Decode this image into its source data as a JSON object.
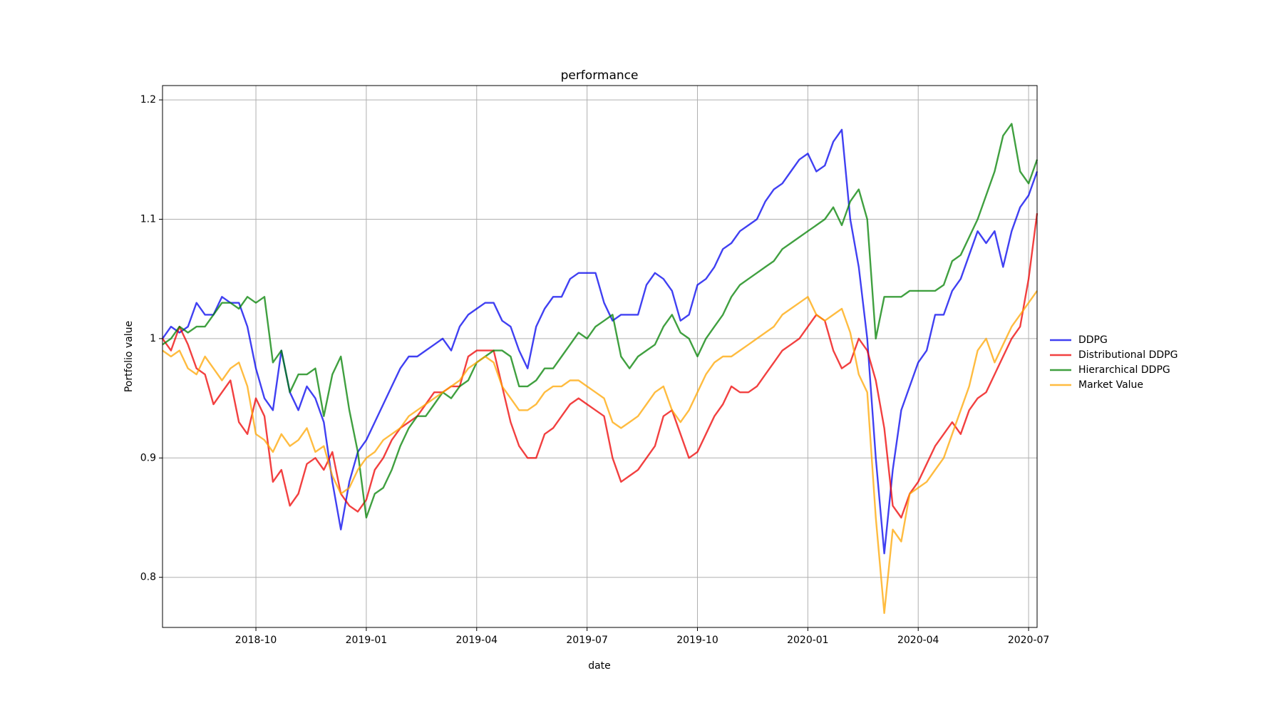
{
  "chart_data": {
    "type": "line",
    "title": "performance",
    "x_label": "date",
    "y_label": "Portfolio value",
    "categories": [
      null,
      null,
      null,
      null,
      null,
      null,
      null,
      null,
      null,
      null,
      null,
      "2018-10",
      null,
      null,
      null,
      null,
      null,
      null,
      null,
      null,
      null,
      null,
      null,
      null,
      "2019-01",
      null,
      null,
      null,
      null,
      null,
      null,
      null,
      null,
      null,
      null,
      null,
      null,
      "2019-04",
      null,
      null,
      null,
      null,
      null,
      null,
      null,
      null,
      null,
      null,
      null,
      null,
      "2019-07",
      null,
      null,
      null,
      null,
      null,
      null,
      null,
      null,
      null,
      null,
      null,
      null,
      "2019-10",
      null,
      null,
      null,
      null,
      null,
      null,
      null,
      null,
      null,
      null,
      null,
      null,
      "2020-01",
      null,
      null,
      null,
      null,
      null,
      null,
      null,
      null,
      null,
      null,
      null,
      null,
      "2020-04",
      null,
      null,
      null,
      null,
      null,
      null,
      null,
      null,
      null,
      null,
      null,
      null,
      "2020-07",
      null
    ],
    "series": [
      {
        "name": "DDPG",
        "color": "#0000ee",
        "values": [
          1.0,
          1.01,
          1.005,
          1.01,
          1.03,
          1.02,
          1.02,
          1.035,
          1.03,
          1.03,
          1.01,
          0.975,
          0.95,
          0.94,
          0.99,
          0.955,
          0.94,
          0.96,
          0.95,
          0.93,
          0.88,
          0.84,
          0.88,
          0.905,
          0.915,
          0.93,
          0.945,
          0.96,
          0.975,
          0.985,
          0.985,
          0.99,
          0.995,
          1.0,
          0.99,
          1.01,
          1.02,
          1.025,
          1.03,
          1.03,
          1.015,
          1.01,
          0.99,
          0.975,
          1.01,
          1.025,
          1.035,
          1.035,
          1.05,
          1.055,
          1.055,
          1.055,
          1.03,
          1.015,
          1.02,
          1.02,
          1.02,
          1.045,
          1.055,
          1.05,
          1.04,
          1.015,
          1.02,
          1.045,
          1.05,
          1.06,
          1.075,
          1.08,
          1.09,
          1.095,
          1.1,
          1.115,
          1.125,
          1.13,
          1.14,
          1.15,
          1.155,
          1.14,
          1.145,
          1.165,
          1.175,
          1.1,
          1.06,
          1.0,
          0.9,
          0.82,
          0.89,
          0.94,
          0.96,
          0.98,
          0.99,
          1.02,
          1.02,
          1.04,
          1.05,
          1.07,
          1.09,
          1.08,
          1.09,
          1.06,
          1.09,
          1.11,
          1.12,
          1.14
        ]
      },
      {
        "name": "Distributional DDPG",
        "color": "#ee0000",
        "values": [
          1.0,
          0.99,
          1.01,
          0.995,
          0.975,
          0.97,
          0.945,
          0.955,
          0.965,
          0.93,
          0.92,
          0.95,
          0.935,
          0.88,
          0.89,
          0.86,
          0.87,
          0.895,
          0.9,
          0.89,
          0.905,
          0.87,
          0.86,
          0.855,
          0.865,
          0.89,
          0.9,
          0.915,
          0.925,
          0.93,
          0.935,
          0.945,
          0.955,
          0.955,
          0.96,
          0.96,
          0.985,
          0.99,
          0.99,
          0.99,
          0.96,
          0.93,
          0.91,
          0.9,
          0.9,
          0.92,
          0.925,
          0.935,
          0.945,
          0.95,
          0.945,
          0.94,
          0.935,
          0.9,
          0.88,
          0.885,
          0.89,
          0.9,
          0.91,
          0.935,
          0.94,
          0.92,
          0.9,
          0.905,
          0.92,
          0.935,
          0.945,
          0.96,
          0.955,
          0.955,
          0.96,
          0.97,
          0.98,
          0.99,
          0.995,
          1.0,
          1.01,
          1.02,
          1.015,
          0.99,
          0.975,
          0.98,
          1.0,
          0.99,
          0.965,
          0.925,
          0.86,
          0.85,
          0.87,
          0.88,
          0.895,
          0.91,
          0.92,
          0.93,
          0.92,
          0.94,
          0.95,
          0.955,
          0.97,
          0.985,
          1.0,
          1.01,
          1.05,
          1.105
        ]
      },
      {
        "name": "Hierarchical DDPG",
        "color": "#008000",
        "values": [
          0.995,
          1.0,
          1.01,
          1.005,
          1.01,
          1.01,
          1.02,
          1.03,
          1.03,
          1.025,
          1.035,
          1.03,
          1.035,
          0.98,
          0.99,
          0.955,
          0.97,
          0.97,
          0.975,
          0.935,
          0.97,
          0.985,
          0.94,
          0.905,
          0.85,
          0.87,
          0.875,
          0.89,
          0.91,
          0.925,
          0.935,
          0.935,
          0.945,
          0.955,
          0.95,
          0.96,
          0.965,
          0.98,
          0.985,
          0.99,
          0.99,
          0.985,
          0.96,
          0.96,
          0.965,
          0.975,
          0.975,
          0.985,
          0.995,
          1.005,
          1.0,
          1.01,
          1.015,
          1.02,
          0.985,
          0.975,
          0.985,
          0.99,
          0.995,
          1.01,
          1.02,
          1.005,
          1.0,
          0.985,
          1.0,
          1.01,
          1.02,
          1.035,
          1.045,
          1.05,
          1.055,
          1.06,
          1.065,
          1.075,
          1.08,
          1.085,
          1.09,
          1.095,
          1.1,
          1.11,
          1.095,
          1.115,
          1.125,
          1.1,
          1.0,
          1.035,
          1.035,
          1.035,
          1.04,
          1.04,
          1.04,
          1.04,
          1.045,
          1.065,
          1.07,
          1.085,
          1.1,
          1.12,
          1.14,
          1.17,
          1.18,
          1.14,
          1.13,
          1.15
        ]
      },
      {
        "name": "Market Value",
        "color": "#ffa500",
        "values": [
          0.99,
          0.985,
          0.99,
          0.975,
          0.97,
          0.985,
          0.975,
          0.965,
          0.975,
          0.98,
          0.96,
          0.92,
          0.915,
          0.905,
          0.92,
          0.91,
          0.915,
          0.925,
          0.905,
          0.91,
          0.885,
          0.87,
          0.875,
          0.89,
          0.9,
          0.905,
          0.915,
          0.92,
          0.925,
          0.935,
          0.94,
          0.945,
          0.95,
          0.955,
          0.96,
          0.965,
          0.975,
          0.98,
          0.985,
          0.98,
          0.96,
          0.95,
          0.94,
          0.94,
          0.945,
          0.955,
          0.96,
          0.96,
          0.965,
          0.965,
          0.96,
          0.955,
          0.95,
          0.93,
          0.925,
          0.93,
          0.935,
          0.945,
          0.955,
          0.96,
          0.94,
          0.93,
          0.94,
          0.955,
          0.97,
          0.98,
          0.985,
          0.985,
          0.99,
          0.995,
          1.0,
          1.005,
          1.01,
          1.02,
          1.025,
          1.03,
          1.035,
          1.02,
          1.015,
          1.02,
          1.025,
          1.005,
          0.97,
          0.955,
          0.85,
          0.77,
          0.84,
          0.83,
          0.87,
          0.875,
          0.88,
          0.89,
          0.9,
          0.92,
          0.94,
          0.96,
          0.99,
          1.0,
          0.98,
          0.995,
          1.01,
          1.02,
          1.03,
          1.04
        ]
      }
    ],
    "ylim": [
      0.758,
      1.212
    ],
    "yticks": [
      0.8,
      0.9,
      1.0,
      1.1,
      1.2
    ],
    "grid": true,
    "legend": "right"
  }
}
